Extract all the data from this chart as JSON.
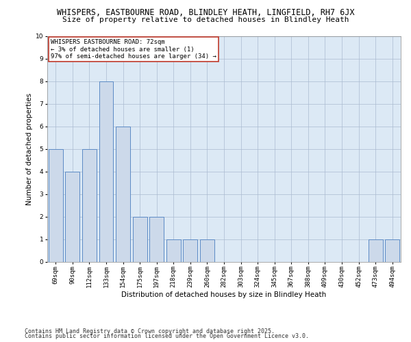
{
  "title_line1": "WHISPERS, EASTBOURNE ROAD, BLINDLEY HEATH, LINGFIELD, RH7 6JX",
  "title_line2": "Size of property relative to detached houses in Blindley Heath",
  "xlabel": "Distribution of detached houses by size in Blindley Heath",
  "ylabel": "Number of detached properties",
  "categories": [
    "69sqm",
    "90sqm",
    "112sqm",
    "133sqm",
    "154sqm",
    "175sqm",
    "197sqm",
    "218sqm",
    "239sqm",
    "260sqm",
    "282sqm",
    "303sqm",
    "324sqm",
    "345sqm",
    "367sqm",
    "388sqm",
    "409sqm",
    "430sqm",
    "452sqm",
    "473sqm",
    "494sqm"
  ],
  "values": [
    5,
    4,
    5,
    8,
    6,
    2,
    2,
    1,
    1,
    1,
    0,
    0,
    0,
    0,
    0,
    0,
    0,
    0,
    0,
    1,
    1
  ],
  "bar_color": "#ccd9ea",
  "bar_edge_color": "#5b8ac5",
  "annotation_text": "WHISPERS EASTBOURNE ROAD: 72sqm\n← 3% of detached houses are smaller (1)\n97% of semi-detached houses are larger (34) →",
  "annotation_box_color": "#ffffff",
  "annotation_box_edge": "#c0392b",
  "ylim": [
    0,
    10
  ],
  "yticks": [
    0,
    1,
    2,
    3,
    4,
    5,
    6,
    7,
    8,
    9,
    10
  ],
  "plot_bg": "#dce9f5",
  "footer_line1": "Contains HM Land Registry data © Crown copyright and database right 2025.",
  "footer_line2": "Contains public sector information licensed under the Open Government Licence v3.0.",
  "title_fontsize": 8.5,
  "subtitle_fontsize": 8,
  "axis_label_fontsize": 7.5,
  "tick_fontsize": 6.5,
  "annotation_fontsize": 6.5,
  "footer_fontsize": 6
}
